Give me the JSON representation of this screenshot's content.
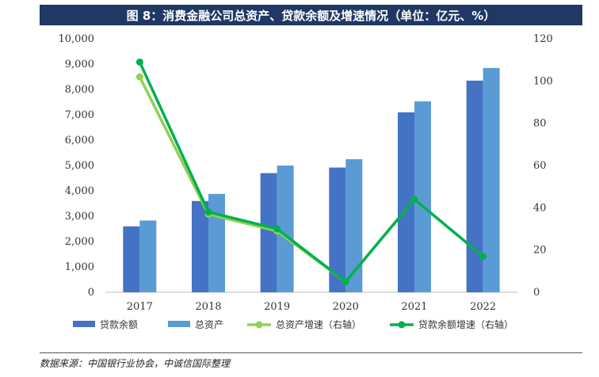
{
  "title": "图 8：消费金融公司总资产、贷款余额及增速情况（单位：亿元、%）",
  "source": "数据来源：中国银行业协会，中诚信国际整理",
  "colors": {
    "loan_bar": "#4472c4",
    "asset_bar": "#5b9bd5",
    "asset_growth_line": "#92d050",
    "loan_growth_line": "#00b050",
    "title_bg": "#1f3864"
  },
  "chart_data": {
    "type": "bar",
    "categories": [
      "2017",
      "2018",
      "2019",
      "2020",
      "2021",
      "2022"
    ],
    "y_left": {
      "ylim": [
        0,
        10000
      ],
      "ticks": [
        "0",
        "1,000",
        "2,000",
        "3,000",
        "4,000",
        "5,000",
        "6,000",
        "7,000",
        "8,000",
        "9,000",
        "10,000"
      ]
    },
    "y_right": {
      "ylim": [
        0,
        120
      ],
      "ticks": [
        "0",
        "20",
        "40",
        "60",
        "80",
        "100",
        "120"
      ]
    },
    "series": [
      {
        "name": "贷款余额",
        "type": "bar",
        "axis": "left",
        "values": [
          2600,
          3600,
          4700,
          4920,
          7100,
          8350
        ]
      },
      {
        "name": "总资产",
        "type": "bar",
        "axis": "left",
        "values": [
          2830,
          3880,
          5000,
          5250,
          7530,
          8850
        ]
      },
      {
        "name": "总资产增速（右轴）",
        "type": "line",
        "axis": "right",
        "values": [
          102,
          37,
          29,
          5,
          44,
          17
        ]
      },
      {
        "name": "贷款余额增速（右轴）",
        "type": "line",
        "axis": "right",
        "values": [
          109,
          38,
          30,
          5,
          44,
          17
        ]
      }
    ],
    "grid": false,
    "legend_position": "bottom"
  }
}
